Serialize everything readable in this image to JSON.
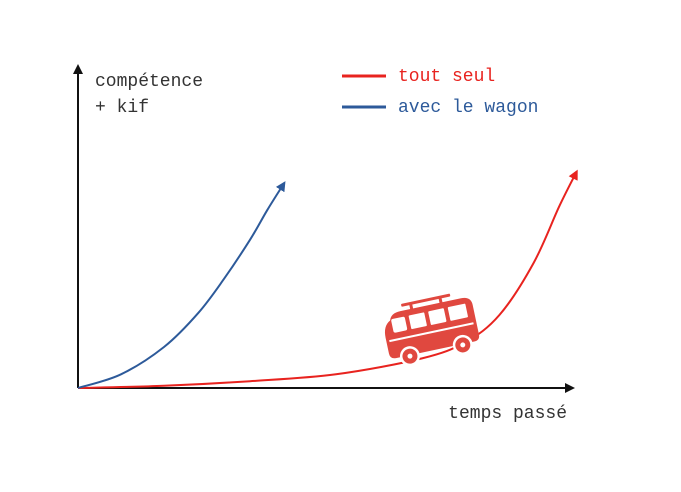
{
  "chart_data": {
    "type": "line",
    "ylabel_lines": [
      "compétence",
      "+ kif"
    ],
    "xlabel": "temps passé",
    "legend_position": "top-right",
    "grid": false,
    "series": [
      {
        "name": "tout seul",
        "color": "#e8231f",
        "x": [
          0,
          10,
          20,
          30,
          40,
          45,
          49,
          53,
          56,
          58
        ],
        "y": [
          0,
          1,
          3,
          6,
          13,
          20,
          32,
          55,
          80,
          95
        ]
      },
      {
        "name": "avec le wagon",
        "color": "#2d5a9a",
        "x": [
          0,
          5,
          10,
          14,
          17,
          20,
          22,
          24
        ],
        "y": [
          0,
          6,
          18,
          33,
          48,
          65,
          78,
          90
        ]
      }
    ],
    "annotation": {
      "icon": "van-icon",
      "color": "#e0483f"
    }
  }
}
